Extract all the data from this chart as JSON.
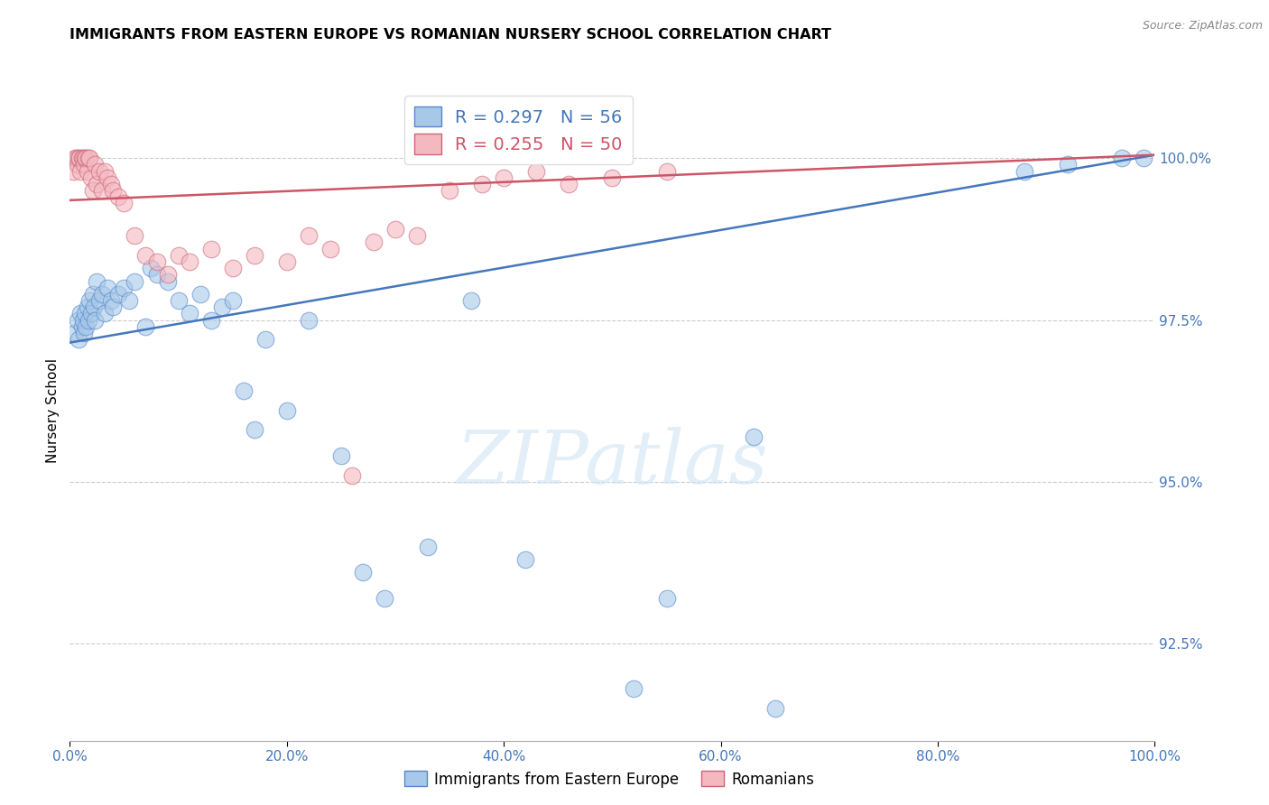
{
  "title": "IMMIGRANTS FROM EASTERN EUROPE VS ROMANIAN NURSERY SCHOOL CORRELATION CHART",
  "source": "Source: ZipAtlas.com",
  "ylabel": "Nursery School",
  "xmin": 0.0,
  "xmax": 100.0,
  "ymin": 91.0,
  "ymax": 101.2,
  "blue_label": "Immigrants from Eastern Europe",
  "pink_label": "Romanians",
  "blue_R": 0.297,
  "blue_N": 56,
  "pink_R": 0.255,
  "pink_N": 50,
  "blue_color": "#a8c8e8",
  "pink_color": "#f4b8c0",
  "blue_edge_color": "#5588cc",
  "pink_edge_color": "#cc6677",
  "blue_line_color": "#4477bb",
  "pink_line_color": "#cc5566",
  "ytick_vals": [
    92.5,
    95.0,
    97.5,
    100.0
  ],
  "watermark_text": "ZIPatlas",
  "blue_scatter_x": [
    0.5,
    0.7,
    0.8,
    1.0,
    1.1,
    1.2,
    1.3,
    1.4,
    1.5,
    1.6,
    1.7,
    1.8,
    2.0,
    2.1,
    2.2,
    2.3,
    2.5,
    2.7,
    3.0,
    3.2,
    3.5,
    3.8,
    4.0,
    4.5,
    5.0,
    5.5,
    6.0,
    7.0,
    7.5,
    8.0,
    9.0,
    10.0,
    11.0,
    12.0,
    13.0,
    14.0,
    15.0,
    16.0,
    17.0,
    18.0,
    20.0,
    22.0,
    25.0,
    27.0,
    29.0,
    33.0,
    37.0,
    42.0,
    52.0,
    55.0,
    63.0,
    65.0,
    88.0,
    92.0,
    97.0,
    99.0
  ],
  "blue_scatter_y": [
    97.3,
    97.5,
    97.2,
    97.6,
    97.4,
    97.5,
    97.3,
    97.6,
    97.4,
    97.7,
    97.5,
    97.8,
    97.6,
    97.9,
    97.7,
    97.5,
    98.1,
    97.8,
    97.9,
    97.6,
    98.0,
    97.8,
    97.7,
    97.9,
    98.0,
    97.8,
    98.1,
    97.4,
    98.3,
    98.2,
    98.1,
    97.8,
    97.6,
    97.9,
    97.5,
    97.7,
    97.8,
    96.4,
    95.8,
    97.2,
    96.1,
    97.5,
    95.4,
    93.6,
    93.2,
    94.0,
    97.8,
    93.8,
    91.8,
    93.2,
    95.7,
    91.5,
    99.8,
    99.9,
    100.0,
    100.0
  ],
  "pink_scatter_x": [
    0.3,
    0.5,
    0.6,
    0.7,
    0.8,
    0.9,
    1.0,
    1.1,
    1.2,
    1.3,
    1.4,
    1.5,
    1.6,
    1.7,
    1.8,
    2.0,
    2.1,
    2.3,
    2.5,
    2.7,
    3.0,
    3.2,
    3.5,
    3.8,
    4.0,
    4.5,
    5.0,
    6.0,
    7.0,
    8.0,
    9.0,
    10.0,
    11.0,
    13.0,
    15.0,
    17.0,
    20.0,
    22.0,
    24.0,
    26.0,
    28.0,
    30.0,
    32.0,
    35.0,
    38.0,
    40.0,
    43.0,
    46.0,
    50.0,
    55.0
  ],
  "pink_scatter_y": [
    99.8,
    100.0,
    100.0,
    99.9,
    100.0,
    100.0,
    99.8,
    100.0,
    100.0,
    99.9,
    100.0,
    100.0,
    99.8,
    100.0,
    100.0,
    99.7,
    99.5,
    99.9,
    99.6,
    99.8,
    99.5,
    99.8,
    99.7,
    99.6,
    99.5,
    99.4,
    99.3,
    98.8,
    98.5,
    98.4,
    98.2,
    98.5,
    98.4,
    98.6,
    98.3,
    98.5,
    98.4,
    98.8,
    98.6,
    95.1,
    98.7,
    98.9,
    98.8,
    99.5,
    99.6,
    99.7,
    99.8,
    99.6,
    99.7,
    99.8
  ],
  "blue_trend_x": [
    0.0,
    100.0
  ],
  "blue_trend_y": [
    97.15,
    100.05
  ],
  "pink_trend_x": [
    0.0,
    100.0
  ],
  "pink_trend_y": [
    99.35,
    100.05
  ]
}
